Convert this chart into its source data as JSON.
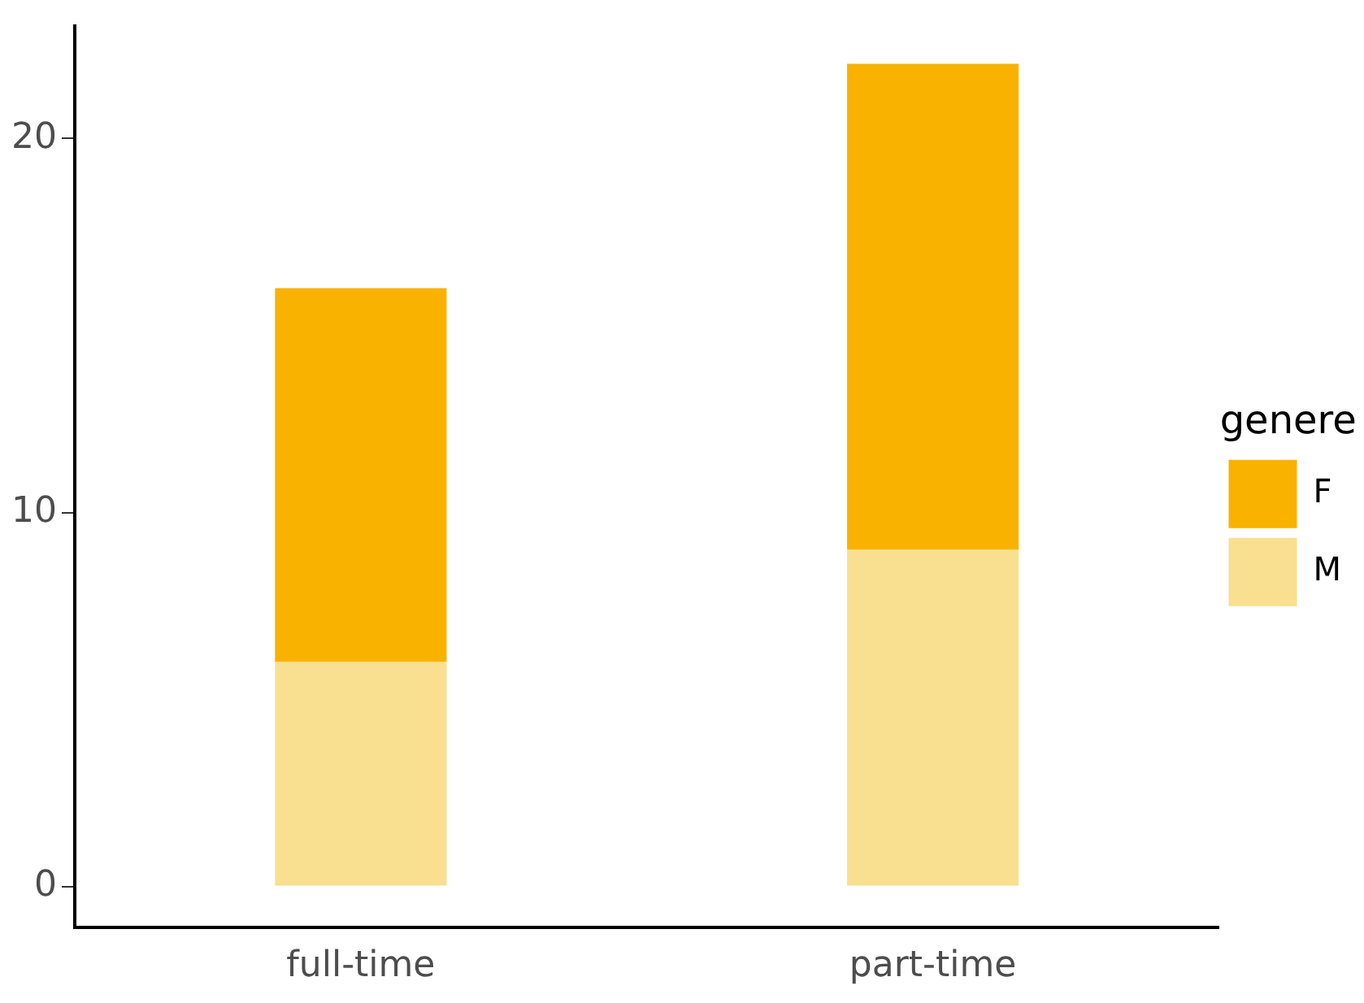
{
  "chart_data": {
    "type": "bar",
    "stacked": true,
    "categories": [
      "full-time",
      "part-time"
    ],
    "series": [
      {
        "name": "M",
        "color": "#f9df90",
        "values": [
          6,
          9
        ]
      },
      {
        "name": "F",
        "color": "#f9b200",
        "values": [
          10,
          13
        ]
      }
    ],
    "legend_title": "genere",
    "legend": "right",
    "ylim": [
      -1.1,
      23
    ],
    "yticks": [
      0,
      10,
      20
    ],
    "grid": false
  }
}
